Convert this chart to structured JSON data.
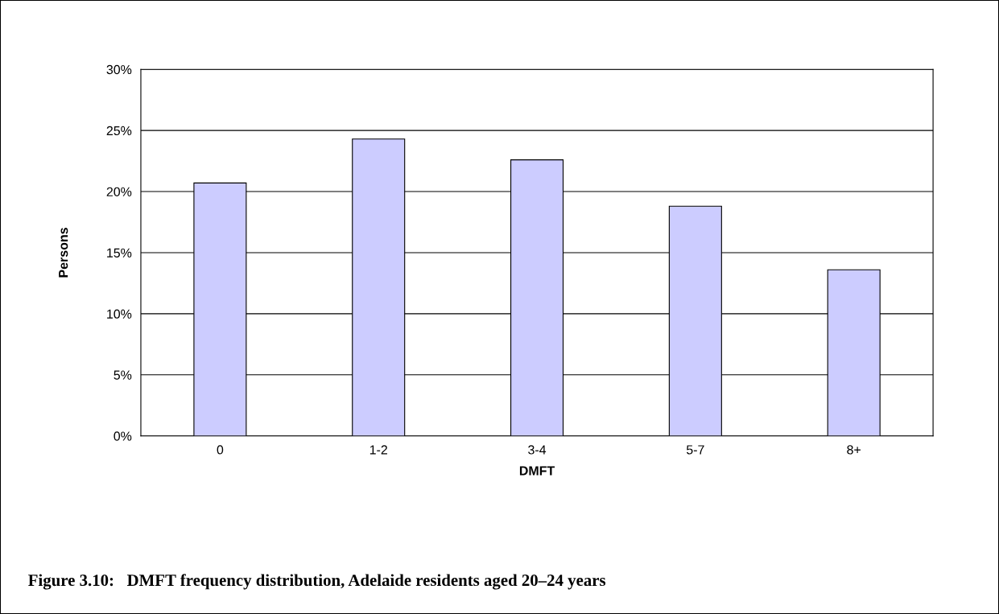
{
  "chart_data": {
    "type": "bar",
    "xlabel": "DMFT",
    "ylabel": "Persons",
    "categories": [
      "0",
      "1-2",
      "3-4",
      "5-7",
      "8+"
    ],
    "values": [
      20.7,
      24.3,
      22.6,
      18.8,
      13.6
    ],
    "color": "#ccccff",
    "ylim": [
      0,
      30
    ],
    "yticks": [
      {
        "value": 0,
        "label": "0%"
      },
      {
        "value": 5,
        "label": "5%"
      },
      {
        "value": 10,
        "label": "10%"
      },
      {
        "value": 15,
        "label": "15%"
      },
      {
        "value": 20,
        "label": "20%"
      },
      {
        "value": 25,
        "label": "25%"
      },
      {
        "value": 30,
        "label": "30%"
      }
    ],
    "grid": "y",
    "legend": false,
    "annotations": [
      "Figure 3.10:   DMFT frequency distribution, Adelaide residents aged 20–24 years"
    ]
  }
}
